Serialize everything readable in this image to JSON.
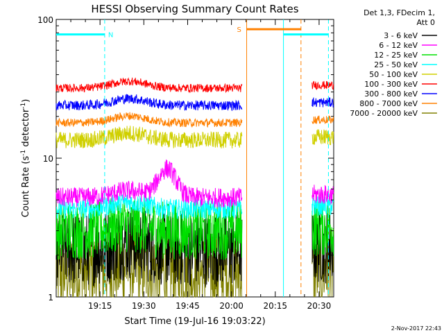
{
  "chart_data": {
    "type": "line",
    "title": "HESSI Observing Summary Count Rates",
    "xlabel": "Start Time (19-Jul-16 19:03:22)",
    "ylabel_main": "Count Rate (s",
    "ylabel_sup1": "-1",
    "ylabel_mid": " detector",
    "ylabel_sup2": "-1",
    "ylabel_end": ")",
    "yscale": "log",
    "ylim": [
      1,
      100
    ],
    "xlim_minutes": [
      0,
      95
    ],
    "x_ticks": [
      {
        "label": "19:15",
        "minute": 15
      },
      {
        "label": "19:30",
        "minute": 30
      },
      {
        "label": "19:45",
        "minute": 45
      },
      {
        "label": "20:00",
        "minute": 60
      },
      {
        "label": "20:15",
        "minute": 75
      },
      {
        "label": "20:30",
        "minute": 90
      }
    ],
    "y_ticks": [
      {
        "label": "1",
        "value": 1
      },
      {
        "label": "10",
        "value": 10
      },
      {
        "label": "100",
        "value": 100
      }
    ],
    "legend_header": [
      "Det 1,3, FDecim 1,",
      "Att 0"
    ],
    "series": [
      {
        "name": "3 - 6 keV",
        "color": "#000000",
        "level": 2.2,
        "noise": 0.45
      },
      {
        "name": "6 - 12 keV",
        "color": "#ff00ff",
        "level": 5.2,
        "noise": 0.12
      },
      {
        "name": "12 - 25 keV",
        "color": "#00e000",
        "level": 3.0,
        "noise": 0.35
      },
      {
        "name": "25 - 50 keV",
        "color": "#00ffff",
        "level": 4.3,
        "noise": 0.12
      },
      {
        "name": "50 - 100 keV",
        "color": "#d0d000",
        "level": 13.5,
        "noise": 0.1
      },
      {
        "name": "100 - 300 keV",
        "color": "#ff0000",
        "level": 32,
        "noise": 0.05
      },
      {
        "name": "300 - 800 keV",
        "color": "#0000ff",
        "level": 24,
        "noise": 0.06
      },
      {
        "name": "800 - 7000 keV",
        "color": "#ff8000",
        "level": 18,
        "noise": 0.05
      },
      {
        "name": "7000 - 20000 keV",
        "color": "#808000",
        "level": 1.5,
        "noise": 0.5
      }
    ],
    "segments_minutes": [
      [
        0,
        63.6
      ],
      [
        87.6,
        95
      ]
    ],
    "flag_bars": [
      {
        "label": "N",
        "color": "#00ffff",
        "x0": 0,
        "x1": 16.6,
        "value": 78
      },
      {
        "label": "S",
        "color": "#ff8000",
        "x0": 65.2,
        "x1": 83.8,
        "value": 85
      },
      {
        "label": "",
        "color": "#00ffff",
        "x0": 77.8,
        "x1": 93.2,
        "value": 78
      }
    ],
    "vertical_lines": [
      {
        "minute": 16.6,
        "color": "#00ffff",
        "style": "dashed"
      },
      {
        "minute": 65.2,
        "color": "#ff8000",
        "style": "solid"
      },
      {
        "minute": 77.8,
        "color": "#00ffff",
        "style": "solid"
      },
      {
        "minute": 83.8,
        "color": "#ff8000",
        "style": "dashed"
      },
      {
        "minute": 93.2,
        "color": "#00ffff",
        "style": "dashed"
      }
    ]
  },
  "footer": {
    "date": "2-Nov-2017 22:43"
  }
}
